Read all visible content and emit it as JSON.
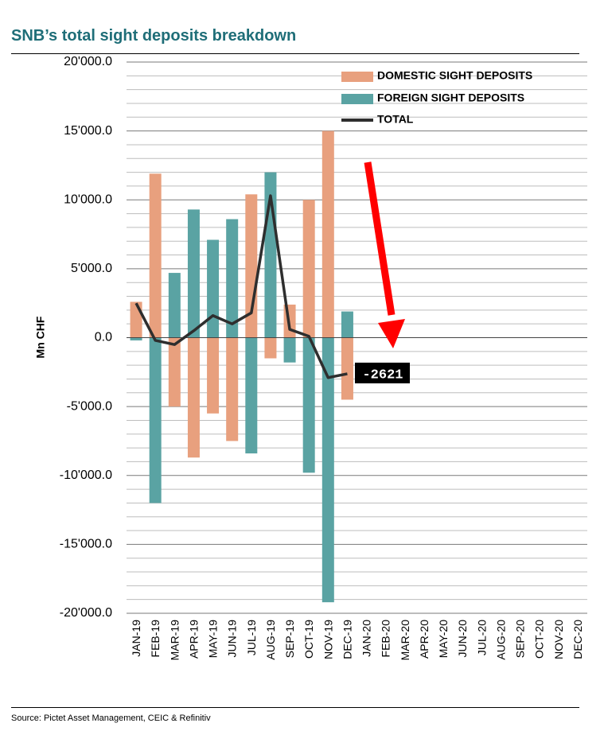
{
  "header": {
    "title": "SNB’s total sight deposits breakdown"
  },
  "footer": {
    "source": "Source: Pictet Asset Management, CEIC & Refinitiv"
  },
  "chart_data": {
    "type": "bar",
    "title": "SNB’s total sight deposits breakdown",
    "ylabel": "Mn CHF",
    "xlabel": "",
    "ylim": [
      -20000,
      20000
    ],
    "yticks": [
      20000,
      15000,
      10000,
      5000,
      0,
      -5000,
      -10000,
      -15000,
      -20000
    ],
    "ytick_labels": [
      "20'000.0",
      "15'000.0",
      "10'000.0",
      "5'000.0",
      "0.0",
      "-5'000.0",
      "-10'000.0",
      "-15'000.0",
      "-20'000.0"
    ],
    "grid": true,
    "legend_position": "top-right",
    "categories": [
      "JAN-19",
      "FEB-19",
      "MAR-19",
      "APR-19",
      "MAY-19",
      "JUN-19",
      "JUL-19",
      "AUG-19",
      "SEP-19",
      "OCT-19",
      "NOV-19",
      "DEC-19",
      "JAN-20",
      "FEB-20",
      "MAR-20",
      "APR-20",
      "MAY-20",
      "JUN-20",
      "JUL-20",
      "AUG-20",
      "SEP-20",
      "OCT-20",
      "NOV-20",
      "DEC-20"
    ],
    "series": [
      {
        "name": "DOMESTIC SIGHT DEPOSITS",
        "kind": "bar",
        "color": "#e8a07e",
        "values": [
          2600,
          11900,
          -5000,
          -8700,
          -5500,
          -7500,
          10400,
          -1500,
          2400,
          10000,
          15000,
          -4500,
          null,
          null,
          null,
          null,
          null,
          null,
          null,
          null,
          null,
          null,
          null,
          null
        ]
      },
      {
        "name": "FOREIGN SIGHT DEPOSITS",
        "kind": "bar",
        "color": "#5aa3a3",
        "values": [
          -200,
          -12000,
          4700,
          9300,
          7100,
          8600,
          -8400,
          12000,
          -1800,
          -9800,
          -19200,
          1900,
          null,
          null,
          null,
          null,
          null,
          null,
          null,
          null,
          null,
          null,
          null,
          null
        ]
      },
      {
        "name": "TOTAL",
        "kind": "line",
        "color": "#2e2e2e",
        "values": [
          2500,
          -200,
          -500,
          500,
          1600,
          1000,
          1800,
          10300,
          600,
          100,
          -2900,
          -2621,
          null,
          null,
          null,
          null,
          null,
          null,
          null,
          null,
          null,
          null,
          null,
          null
        ]
      }
    ],
    "annotations": [
      {
        "text": "-2621",
        "at_category": "DEC-19"
      }
    ],
    "arrow_color": "#ff0000"
  }
}
